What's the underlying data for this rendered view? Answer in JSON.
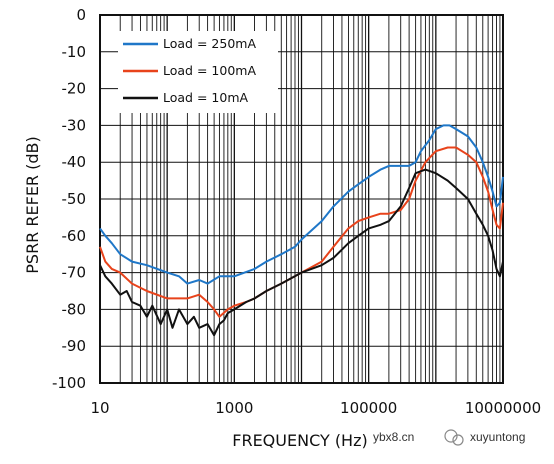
{
  "chart_data": {
    "type": "line",
    "title": "",
    "xlabel": "FREQUENCY (Hz)",
    "ylabel": "PSRR REFER (dB)",
    "x_scale": "log",
    "xlim": [
      10,
      10000000
    ],
    "ylim": [
      -100,
      0
    ],
    "x_ticks": [
      10,
      1000,
      100000,
      10000000
    ],
    "x_tick_labels": [
      "10",
      "1000",
      "100000",
      "10000000"
    ],
    "y_ticks": [
      0,
      -10,
      -20,
      -30,
      -40,
      -50,
      -60,
      -70,
      -80,
      -90,
      -100
    ],
    "grid": true,
    "legend_position": "top-left",
    "series": [
      {
        "name": "Load = 250mA",
        "color": "#1f77c8",
        "points": [
          [
            10,
            -58
          ],
          [
            12,
            -60
          ],
          [
            15,
            -62
          ],
          [
            20,
            -65
          ],
          [
            30,
            -67
          ],
          [
            50,
            -68
          ],
          [
            100,
            -70
          ],
          [
            150,
            -71
          ],
          [
            200,
            -73
          ],
          [
            300,
            -72
          ],
          [
            400,
            -73
          ],
          [
            600,
            -71
          ],
          [
            1000,
            -71
          ],
          [
            2000,
            -69
          ],
          [
            3000,
            -67
          ],
          [
            5000,
            -65
          ],
          [
            8000,
            -63
          ],
          [
            10000,
            -61
          ],
          [
            20000,
            -56
          ],
          [
            30000,
            -52
          ],
          [
            50000,
            -48
          ],
          [
            70000,
            -46
          ],
          [
            100000,
            -44
          ],
          [
            150000,
            -42
          ],
          [
            200000,
            -41
          ],
          [
            300000,
            -41
          ],
          [
            400000,
            -41
          ],
          [
            500000,
            -40
          ],
          [
            600000,
            -37
          ],
          [
            800000,
            -34
          ],
          [
            1000000,
            -31
          ],
          [
            1300000,
            -30
          ],
          [
            1600000,
            -30
          ],
          [
            2000000,
            -31
          ],
          [
            3000000,
            -33
          ],
          [
            4000000,
            -36
          ],
          [
            5000000,
            -40
          ],
          [
            6000000,
            -44
          ],
          [
            7000000,
            -48
          ],
          [
            8000000,
            -52
          ],
          [
            9000000,
            -51
          ],
          [
            10000000,
            -44
          ]
        ]
      },
      {
        "name": "Load = 100mA",
        "color": "#e8431b",
        "points": [
          [
            10,
            -63
          ],
          [
            12,
            -67
          ],
          [
            15,
            -69
          ],
          [
            20,
            -70
          ],
          [
            30,
            -73
          ],
          [
            50,
            -75
          ],
          [
            100,
            -77
          ],
          [
            200,
            -77
          ],
          [
            300,
            -76
          ],
          [
            400,
            -78
          ],
          [
            500,
            -80
          ],
          [
            600,
            -82
          ],
          [
            800,
            -80
          ],
          [
            1000,
            -79
          ],
          [
            1500,
            -78
          ],
          [
            2000,
            -77
          ],
          [
            3000,
            -75
          ],
          [
            5000,
            -73
          ],
          [
            10000,
            -70
          ],
          [
            20000,
            -67
          ],
          [
            30000,
            -63
          ],
          [
            50000,
            -58
          ],
          [
            70000,
            -56
          ],
          [
            100000,
            -55
          ],
          [
            150000,
            -54
          ],
          [
            200000,
            -54
          ],
          [
            300000,
            -53
          ],
          [
            400000,
            -50
          ],
          [
            500000,
            -45
          ],
          [
            700000,
            -40
          ],
          [
            1000000,
            -37
          ],
          [
            1500000,
            -36
          ],
          [
            2000000,
            -36
          ],
          [
            3000000,
            -38
          ],
          [
            4000000,
            -40
          ],
          [
            5000000,
            -44
          ],
          [
            6000000,
            -48
          ],
          [
            7000000,
            -53
          ],
          [
            8000000,
            -57
          ],
          [
            9000000,
            -58
          ],
          [
            10000000,
            -51
          ]
        ]
      },
      {
        "name": "Load = 10mA",
        "color": "#111111",
        "points": [
          [
            10,
            -68
          ],
          [
            12,
            -71
          ],
          [
            15,
            -73
          ],
          [
            20,
            -76
          ],
          [
            25,
            -75
          ],
          [
            30,
            -78
          ],
          [
            40,
            -79
          ],
          [
            50,
            -82
          ],
          [
            60,
            -79
          ],
          [
            80,
            -84
          ],
          [
            100,
            -80
          ],
          [
            120,
            -85
          ],
          [
            150,
            -80
          ],
          [
            200,
            -84
          ],
          [
            250,
            -82
          ],
          [
            300,
            -85
          ],
          [
            400,
            -84
          ],
          [
            500,
            -87
          ],
          [
            600,
            -84
          ],
          [
            700,
            -83
          ],
          [
            800,
            -81
          ],
          [
            1000,
            -80
          ],
          [
            1500,
            -78
          ],
          [
            2000,
            -77
          ],
          [
            3000,
            -75
          ],
          [
            5000,
            -73
          ],
          [
            10000,
            -70
          ],
          [
            20000,
            -68
          ],
          [
            30000,
            -66
          ],
          [
            50000,
            -62
          ],
          [
            70000,
            -60
          ],
          [
            100000,
            -58
          ],
          [
            150000,
            -57
          ],
          [
            200000,
            -56
          ],
          [
            300000,
            -52
          ],
          [
            400000,
            -47
          ],
          [
            500000,
            -43
          ],
          [
            700000,
            -42
          ],
          [
            1000000,
            -43
          ],
          [
            1500000,
            -45
          ],
          [
            2000000,
            -47
          ],
          [
            3000000,
            -50
          ],
          [
            4000000,
            -54
          ],
          [
            5000000,
            -57
          ],
          [
            6000000,
            -60
          ],
          [
            7000000,
            -64
          ],
          [
            8000000,
            -69
          ],
          [
            9000000,
            -71
          ],
          [
            10000000,
            -67
          ]
        ]
      }
    ]
  },
  "watermark": {
    "site": "ybx8.cn",
    "account": "xuyuntong"
  }
}
